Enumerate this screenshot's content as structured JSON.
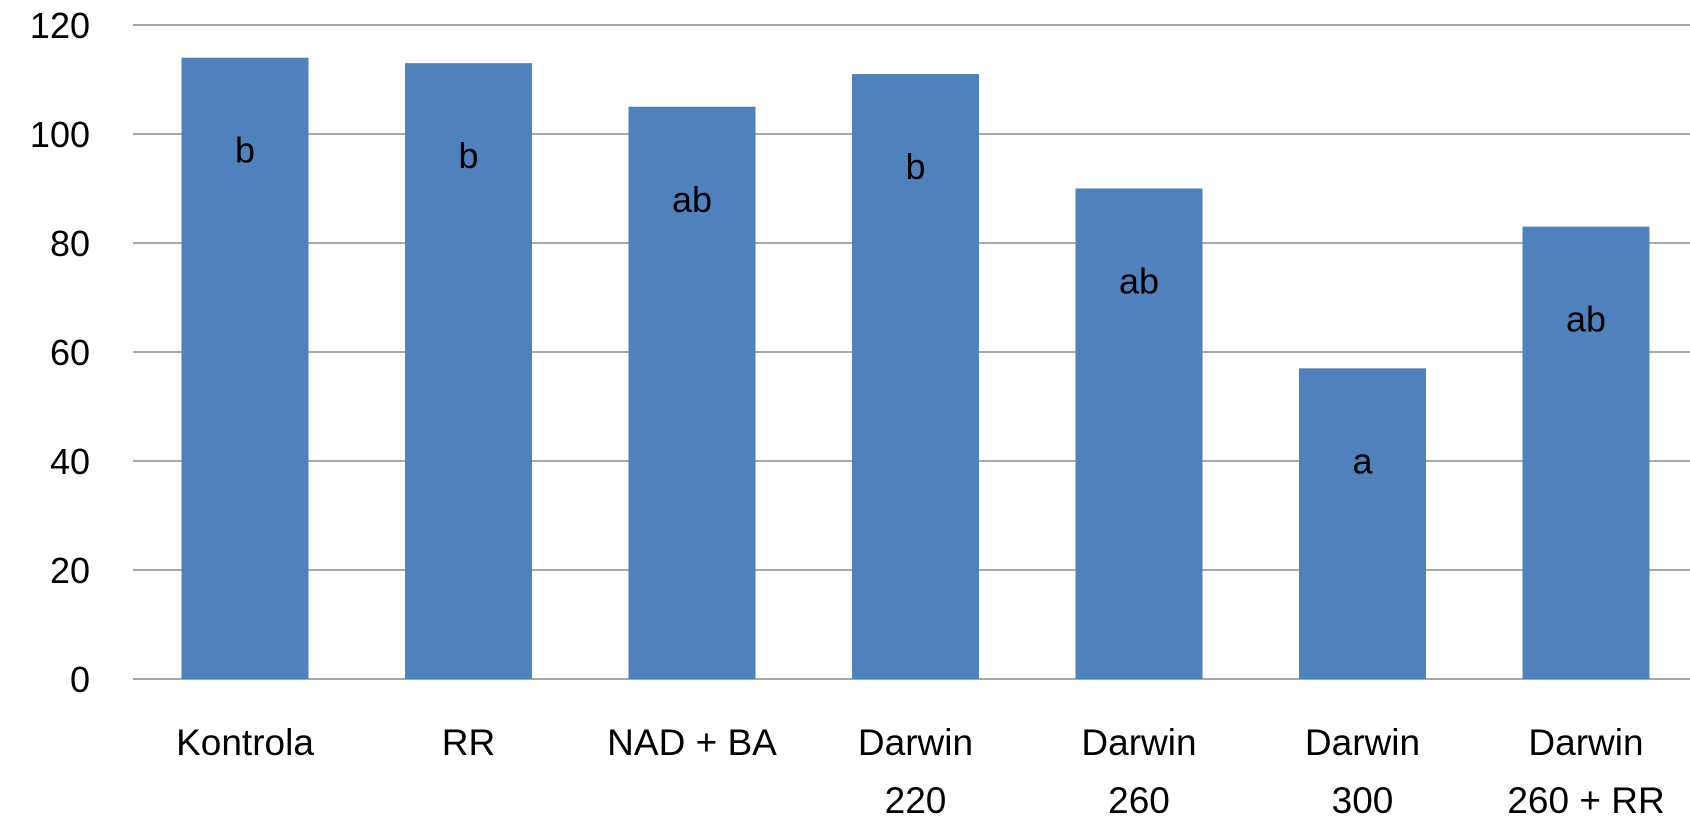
{
  "chart_data": {
    "type": "bar",
    "categories": [
      [
        "Kontrola"
      ],
      [
        "RR"
      ],
      [
        "NAD + BA"
      ],
      [
        "Darwin",
        "220"
      ],
      [
        "Darwin",
        "260"
      ],
      [
        "Darwin",
        "300"
      ],
      [
        "Darwin",
        "260 + RR"
      ]
    ],
    "series": [
      {
        "values": [
          114,
          113,
          105,
          111,
          90,
          57,
          83
        ],
        "labels": [
          "b",
          "b",
          "ab",
          "b",
          "ab",
          "a",
          "ab"
        ],
        "color": "#4f81bd"
      }
    ],
    "yticks": [
      0,
      20,
      40,
      60,
      80,
      100,
      120
    ],
    "ylim": [
      0,
      120
    ],
    "grid": true,
    "legend": "none",
    "gridline_color": "#8c8c8c"
  }
}
